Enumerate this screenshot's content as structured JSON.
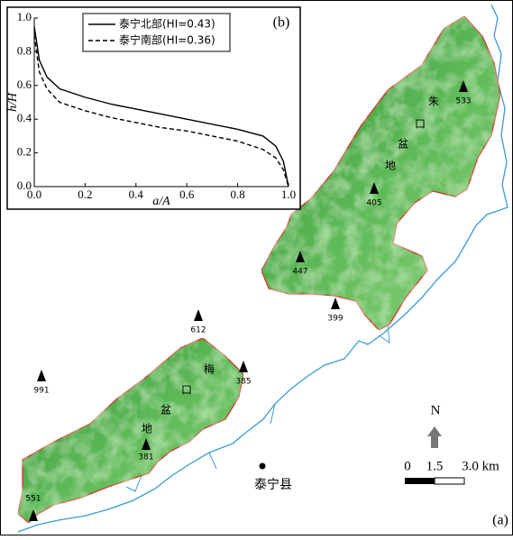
{
  "chart_data": {
    "type": "line",
    "label": "(b)",
    "xlabel": "a/A",
    "ylabel": "h/H",
    "x": [
      0,
      0.02,
      0.05,
      0.1,
      0.2,
      0.3,
      0.4,
      0.5,
      0.6,
      0.7,
      0.8,
      0.9,
      0.95,
      0.98,
      1.0
    ],
    "series": [
      {
        "name": "泰宁北部(HI=0.43)",
        "color": "#000000",
        "dash": false,
        "values": [
          0.95,
          0.75,
          0.65,
          0.58,
          0.53,
          0.49,
          0.46,
          0.43,
          0.4,
          0.37,
          0.34,
          0.3,
          0.24,
          0.15,
          0.0
        ]
      },
      {
        "name": "泰宁南部(HI=0.36)",
        "color": "#000000",
        "dash": true,
        "values": [
          0.9,
          0.68,
          0.58,
          0.5,
          0.45,
          0.41,
          0.38,
          0.35,
          0.33,
          0.3,
          0.27,
          0.22,
          0.17,
          0.1,
          0.0
        ]
      }
    ],
    "xlim": [
      0,
      1
    ],
    "ylim": [
      0,
      1
    ],
    "xticks": [
      {
        "value": 0,
        "label": "0.0"
      },
      0.2,
      0.4,
      0.6,
      0.8,
      {
        "value": 1,
        "label": "1.0"
      }
    ],
    "yticks": [
      {
        "value": 0,
        "label": "0.0"
      },
      0.2,
      0.4,
      0.6,
      0.8,
      {
        "value": 1,
        "label": "1.0"
      }
    ],
    "legend": "upper right"
  },
  "map": {
    "label": "(a)",
    "basins": [
      {
        "chars": [
          "朱",
          "口",
          "盆",
          "地"
        ]
      },
      {
        "chars": [
          "梅",
          "口",
          "盆",
          "地"
        ]
      }
    ],
    "peaks": [
      533,
      405,
      447,
      399,
      612,
      385,
      991,
      381,
      551
    ],
    "county": "泰宁县",
    "north": "N",
    "scale": [
      "0",
      "1.5",
      "3.0 km"
    ]
  }
}
